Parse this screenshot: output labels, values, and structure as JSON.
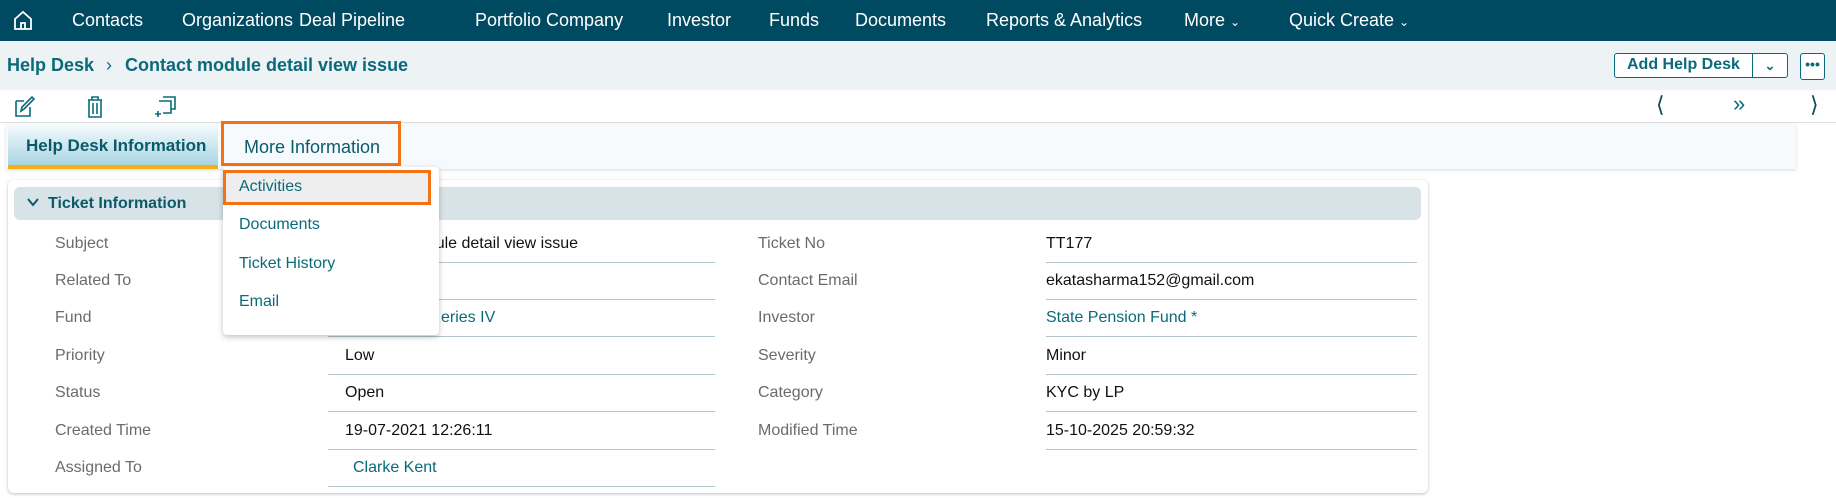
{
  "nav": {
    "items": [
      "Contacts",
      "Organizations",
      "Deal Pipeline",
      "Portfolio Company",
      "Investor",
      "Funds",
      "Documents",
      "Reports & Analytics",
      "More",
      "Quick Create"
    ]
  },
  "breadcrumb": {
    "module": "Help Desk",
    "record": "Contact module detail view issue"
  },
  "header_actions": {
    "add_label": "Add Help Desk",
    "more": "•••"
  },
  "tabs": {
    "active": "Help Desk Information",
    "other": "More Information"
  },
  "dropdown": {
    "items": [
      "Activities",
      "Documents",
      "Ticket History",
      "Email"
    ],
    "highlighted": "Activities"
  },
  "section": {
    "title": "Ticket Information"
  },
  "fields_left": [
    {
      "label": "Subject",
      "value": "Contact module detail view issue"
    },
    {
      "label": "Related To",
      "value": ""
    },
    {
      "label": "Fund",
      "value": "eries IV"
    },
    {
      "label": "Priority",
      "value": "Low"
    },
    {
      "label": "Status",
      "value": "Open"
    },
    {
      "label": "Created Time",
      "value": "19-07-2021 12:26:11"
    },
    {
      "label": "Assigned To",
      "value": "Clarke Kent"
    }
  ],
  "fields_right": [
    {
      "label": "Ticket No",
      "value": "TT177"
    },
    {
      "label": "Contact Email",
      "value": "ekatasharma152@gmail.com"
    },
    {
      "label": "Investor",
      "value": "State Pension Fund *"
    },
    {
      "label": "Severity",
      "value": "Minor"
    },
    {
      "label": "Category",
      "value": "KYC by LP"
    },
    {
      "label": "Modified Time",
      "value": "15-10-2025 20:59:32"
    }
  ],
  "colors": {
    "nav_bg": "#004a61",
    "accent": "#0a6a7a",
    "highlight": "#f47216",
    "tab_underline": "#f6ae14"
  }
}
